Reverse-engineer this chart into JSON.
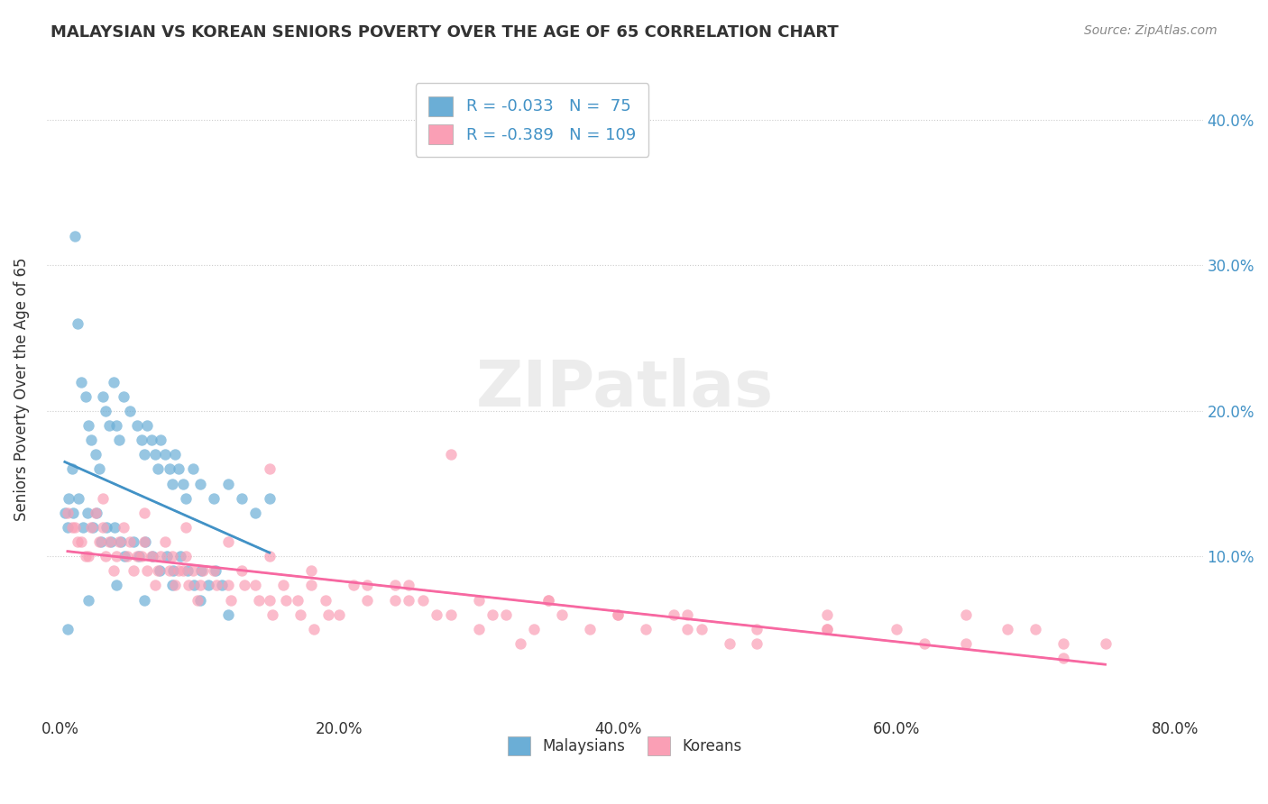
{
  "title": "MALAYSIAN VS KOREAN SENIORS POVERTY OVER THE AGE OF 65 CORRELATION CHART",
  "source": "Source: ZipAtlas.com",
  "ylabel": "Seniors Poverty Over the Age of 65",
  "xlabel_ticks": [
    "0.0%",
    "20.0%",
    "40.0%",
    "60.0%",
    "80.0%"
  ],
  "xlabel_vals": [
    0.0,
    0.2,
    0.4,
    0.6,
    0.8
  ],
  "ylabel_ticks_right": [
    "10.0%",
    "20.0%",
    "30.0%",
    "40.0%"
  ],
  "ylabel_vals_right": [
    0.1,
    0.2,
    0.3,
    0.4
  ],
  "xlim": [
    -0.01,
    0.82
  ],
  "ylim": [
    -0.01,
    0.44
  ],
  "watermark": "ZIPatlas",
  "legend_r1": "R = -0.033",
  "legend_n1": "N =  75",
  "legend_r2": "R = -0.389",
  "legend_n2": "N = 109",
  "blue_color": "#6baed6",
  "pink_color": "#fa9fb5",
  "blue_line_color": "#4292c6",
  "pink_line_color": "#f768a1",
  "r1": -0.033,
  "n1": 75,
  "r2": -0.389,
  "n2": 109,
  "malaysian_x": [
    0.005,
    0.008,
    0.01,
    0.012,
    0.015,
    0.018,
    0.02,
    0.022,
    0.025,
    0.028,
    0.03,
    0.032,
    0.035,
    0.038,
    0.04,
    0.042,
    0.045,
    0.05,
    0.055,
    0.058,
    0.06,
    0.062,
    0.065,
    0.068,
    0.07,
    0.072,
    0.075,
    0.078,
    0.08,
    0.082,
    0.085,
    0.088,
    0.09,
    0.095,
    0.1,
    0.11,
    0.12,
    0.13,
    0.14,
    0.15,
    0.003,
    0.006,
    0.009,
    0.013,
    0.016,
    0.019,
    0.023,
    0.026,
    0.029,
    0.033,
    0.036,
    0.039,
    0.043,
    0.046,
    0.052,
    0.056,
    0.061,
    0.066,
    0.071,
    0.076,
    0.081,
    0.086,
    0.091,
    0.096,
    0.101,
    0.106,
    0.111,
    0.116,
    0.02,
    0.04,
    0.06,
    0.08,
    0.1,
    0.12,
    0.005
  ],
  "malaysian_y": [
    0.12,
    0.16,
    0.32,
    0.26,
    0.22,
    0.21,
    0.19,
    0.18,
    0.17,
    0.16,
    0.21,
    0.2,
    0.19,
    0.22,
    0.19,
    0.18,
    0.21,
    0.2,
    0.19,
    0.18,
    0.17,
    0.19,
    0.18,
    0.17,
    0.16,
    0.18,
    0.17,
    0.16,
    0.15,
    0.17,
    0.16,
    0.15,
    0.14,
    0.16,
    0.15,
    0.14,
    0.15,
    0.14,
    0.13,
    0.14,
    0.13,
    0.14,
    0.13,
    0.14,
    0.12,
    0.13,
    0.12,
    0.13,
    0.11,
    0.12,
    0.11,
    0.12,
    0.11,
    0.1,
    0.11,
    0.1,
    0.11,
    0.1,
    0.09,
    0.1,
    0.09,
    0.1,
    0.09,
    0.08,
    0.09,
    0.08,
    0.09,
    0.08,
    0.07,
    0.08,
    0.07,
    0.08,
    0.07,
    0.06,
    0.05
  ],
  "korean_x": [
    0.005,
    0.01,
    0.015,
    0.02,
    0.025,
    0.03,
    0.035,
    0.04,
    0.045,
    0.05,
    0.055,
    0.06,
    0.065,
    0.07,
    0.075,
    0.08,
    0.085,
    0.09,
    0.095,
    0.1,
    0.11,
    0.12,
    0.13,
    0.14,
    0.15,
    0.16,
    0.17,
    0.18,
    0.19,
    0.2,
    0.22,
    0.24,
    0.26,
    0.28,
    0.3,
    0.32,
    0.34,
    0.36,
    0.38,
    0.4,
    0.42,
    0.44,
    0.46,
    0.48,
    0.5,
    0.55,
    0.6,
    0.65,
    0.7,
    0.75,
    0.008,
    0.012,
    0.018,
    0.022,
    0.028,
    0.032,
    0.038,
    0.042,
    0.048,
    0.052,
    0.058,
    0.062,
    0.068,
    0.072,
    0.078,
    0.082,
    0.088,
    0.092,
    0.098,
    0.102,
    0.112,
    0.122,
    0.132,
    0.142,
    0.152,
    0.162,
    0.172,
    0.182,
    0.192,
    0.22,
    0.25,
    0.28,
    0.31,
    0.35,
    0.4,
    0.45,
    0.5,
    0.55,
    0.62,
    0.68,
    0.72,
    0.15,
    0.25,
    0.35,
    0.45,
    0.55,
    0.65,
    0.72,
    0.03,
    0.06,
    0.09,
    0.12,
    0.15,
    0.18,
    0.21,
    0.24,
    0.27,
    0.3,
    0.33
  ],
  "korean_y": [
    0.13,
    0.12,
    0.11,
    0.1,
    0.13,
    0.12,
    0.11,
    0.1,
    0.12,
    0.11,
    0.1,
    0.11,
    0.1,
    0.09,
    0.11,
    0.1,
    0.09,
    0.1,
    0.09,
    0.08,
    0.09,
    0.08,
    0.09,
    0.08,
    0.07,
    0.08,
    0.07,
    0.08,
    0.07,
    0.06,
    0.07,
    0.08,
    0.07,
    0.06,
    0.07,
    0.06,
    0.05,
    0.06,
    0.05,
    0.06,
    0.05,
    0.06,
    0.05,
    0.04,
    0.05,
    0.06,
    0.05,
    0.06,
    0.05,
    0.04,
    0.12,
    0.11,
    0.1,
    0.12,
    0.11,
    0.1,
    0.09,
    0.11,
    0.1,
    0.09,
    0.1,
    0.09,
    0.08,
    0.1,
    0.09,
    0.08,
    0.09,
    0.08,
    0.07,
    0.09,
    0.08,
    0.07,
    0.08,
    0.07,
    0.06,
    0.07,
    0.06,
    0.05,
    0.06,
    0.08,
    0.07,
    0.17,
    0.06,
    0.07,
    0.06,
    0.05,
    0.04,
    0.05,
    0.04,
    0.05,
    0.04,
    0.16,
    0.08,
    0.07,
    0.06,
    0.05,
    0.04,
    0.03,
    0.14,
    0.13,
    0.12,
    0.11,
    0.1,
    0.09,
    0.08,
    0.07,
    0.06,
    0.05,
    0.04
  ]
}
